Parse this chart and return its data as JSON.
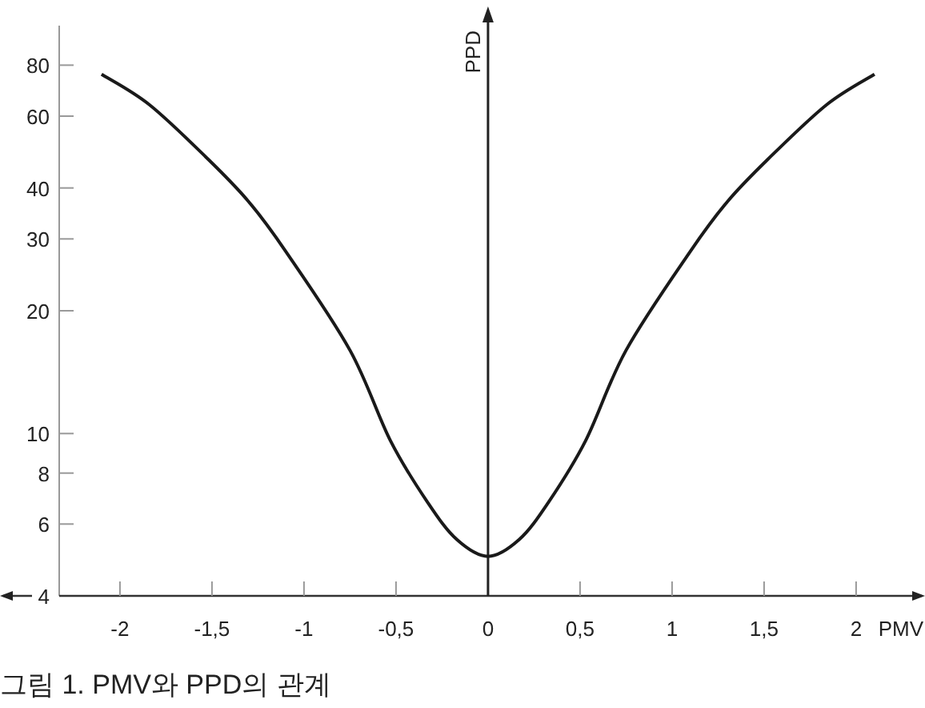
{
  "chart_data": {
    "type": "line",
    "xlabel": "PMV",
    "ylabel": "PPD",
    "log": "y",
    "color": "#1a1a1a",
    "x": [
      -2.1,
      -1.84,
      -1.52,
      -1.3,
      -1.1,
      -0.75,
      -0.53,
      -0.33,
      -0.17,
      0,
      0.17,
      0.33,
      0.53,
      0.75,
      1.1,
      1.3,
      1.52,
      1.84,
      2.1
    ],
    "values": [
      76,
      64,
      47,
      37,
      28,
      16,
      9.6,
      6.8,
      5.5,
      5,
      5.5,
      6.8,
      9.6,
      16,
      28,
      37,
      47,
      64,
      76
    ],
    "xlim": [
      -2.33,
      2.37
    ],
    "ylim": [
      4,
      100
    ],
    "xticks": [
      -2,
      {
        "value": -1.5,
        "label": "-1,5"
      },
      -1,
      {
        "value": -0.5,
        "label": "-0,5"
      },
      0,
      {
        "value": 0.5,
        "label": "0,5"
      },
      1,
      {
        "value": 1.5,
        "label": "1,5"
      },
      2
    ],
    "yticks": [
      4,
      6,
      8,
      10,
      20,
      30,
      40,
      60,
      80
    ],
    "annotations": [
      "그림 1. PMV와 PPD의 관계"
    ]
  }
}
